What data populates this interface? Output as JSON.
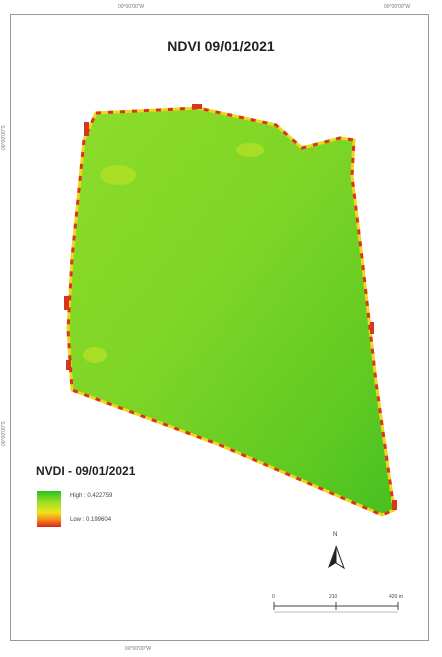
{
  "map": {
    "title": "NDVI 09/01/2021",
    "coords": {
      "top_left": "00°00'00\"W",
      "top_right": "00°00'00\"W",
      "bottom_center": "00°00'00\"W",
      "left_upper": "00°00'00\"S",
      "left_lower": "00°00'00\"S"
    }
  },
  "legend": {
    "title": "NVDI - 09/01/2021",
    "high_label": "High : 0.422759",
    "low_label": "Low : 0.199604",
    "high_value": 0.422759,
    "low_value": 0.199604,
    "colors": [
      "#22c41e",
      "#9be024",
      "#f0e21e",
      "#f58a1a",
      "#d9261a"
    ]
  },
  "north_arrow": {
    "label": "N"
  },
  "scale_bar": {
    "labels": [
      "0",
      "210",
      "420 m"
    ]
  }
}
